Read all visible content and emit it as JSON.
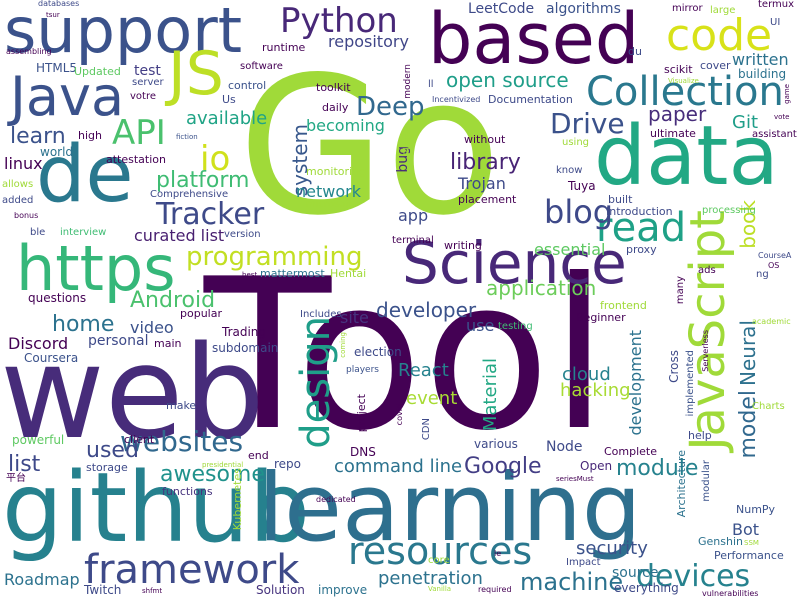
{
  "words": [
    {
      "text": "Tool",
      "color": "#440154"
    },
    {
      "text": "Go",
      "color": "#a0da39"
    },
    {
      "text": "web",
      "color": "#472c7a"
    },
    {
      "text": "github",
      "color": "#26818e"
    },
    {
      "text": "learning",
      "color": "#2e6f8e"
    },
    {
      "text": "based",
      "color": "#440154"
    },
    {
      "text": "support",
      "color": "#3b528b"
    },
    {
      "text": "de",
      "color": "#2a788e"
    },
    {
      "text": "data",
      "color": "#22a884"
    },
    {
      "text": "Science",
      "color": "#482878"
    },
    {
      "text": "JavaScript",
      "color": "#a0da39"
    },
    {
      "text": "https",
      "color": "#35b779"
    },
    {
      "text": "Java",
      "color": "#3b528b"
    },
    {
      "text": "JS",
      "color": "#bddf26"
    },
    {
      "text": "code",
      "color": "#d8e219"
    },
    {
      "text": "Collection",
      "color": "#2a788e"
    },
    {
      "text": "Python",
      "color": "#482878"
    },
    {
      "text": "resources",
      "color": "#2a788e"
    },
    {
      "text": "framework",
      "color": "#3e4a89"
    },
    {
      "text": "design",
      "color": "#1f9e89"
    },
    {
      "text": "read",
      "color": "#1fa187"
    },
    {
      "text": "API",
      "color": "#4ac16d"
    },
    {
      "text": "Deep",
      "color": "#31688e"
    },
    {
      "text": "io",
      "color": "#d0e11c"
    },
    {
      "text": "Tracker",
      "color": "#3e4a89"
    },
    {
      "text": "programming",
      "color": "#c2df23"
    },
    {
      "text": "websites",
      "color": "#31688e"
    },
    {
      "text": "blog",
      "color": "#3e4989"
    },
    {
      "text": "Drive",
      "color": "#3b528b"
    },
    {
      "text": "devices",
      "color": "#26828e"
    },
    {
      "text": "machine",
      "color": "#2c728e"
    },
    {
      "text": "Google",
      "color": "#433e85"
    },
    {
      "text": "module",
      "color": "#26828e"
    },
    {
      "text": "application",
      "color": "#6ccd5a"
    },
    {
      "text": "developer",
      "color": "#3b528b"
    },
    {
      "text": "library",
      "color": "#482475"
    },
    {
      "text": "home",
      "color": "#2c728e"
    },
    {
      "text": "used",
      "color": "#3e4a89"
    },
    {
      "text": "book",
      "color": "#bddf26"
    },
    {
      "text": "model",
      "color": "#31688e"
    },
    {
      "text": "Neural",
      "color": "#2d718e"
    },
    {
      "text": "learn",
      "color": "#3b528b"
    },
    {
      "text": "Android",
      "color": "#4ac16d"
    },
    {
      "text": "platform",
      "color": "#3fbc73"
    },
    {
      "text": "paper",
      "color": "#472d7b"
    },
    {
      "text": "open source",
      "color": "#1f9e89"
    },
    {
      "text": "command line",
      "color": "#2c728e"
    },
    {
      "text": "penetration",
      "color": "#2c728e"
    },
    {
      "text": "system",
      "color": "#38588c"
    },
    {
      "text": "awesome",
      "color": "#20928c"
    },
    {
      "text": "list",
      "color": "#3e4989"
    },
    {
      "text": "security",
      "color": "#3b528b"
    },
    {
      "text": "repository",
      "color": "#404688"
    },
    {
      "text": "Git",
      "color": "#1f9e89"
    },
    {
      "text": "written",
      "color": "#2c728e"
    },
    {
      "text": "available",
      "color": "#20a486"
    },
    {
      "text": "cloud",
      "color": "#26828e"
    },
    {
      "text": "Material",
      "color": "#22a884"
    },
    {
      "text": "hacking",
      "color": "#a8db34"
    },
    {
      "text": "event",
      "color": "#a8db34"
    },
    {
      "text": "becoming",
      "color": "#22a884"
    },
    {
      "text": "network",
      "color": "#24878e"
    },
    {
      "text": "Trojan",
      "color": "#3e4a89"
    },
    {
      "text": "video",
      "color": "#3b528b"
    },
    {
      "text": "Discord",
      "color": "#440154"
    },
    {
      "text": "personal",
      "color": "#3e4a89"
    },
    {
      "text": "React",
      "color": "#26828e"
    },
    {
      "text": "development",
      "color": "#2c728e"
    },
    {
      "text": "source",
      "color": "#2c728e"
    },
    {
      "text": "Roadmap",
      "color": "#2c728e"
    },
    {
      "text": "curated list",
      "color": "#481f70"
    },
    {
      "text": "essential",
      "color": "#5ec962"
    },
    {
      "text": "app",
      "color": "#3e4a89"
    },
    {
      "text": "bug",
      "color": "#472c7a"
    },
    {
      "text": "site",
      "color": "#46337e"
    },
    {
      "text": "linux",
      "color": "#440154"
    },
    {
      "text": "use",
      "color": "#3b528b"
    },
    {
      "text": "LeetCode",
      "color": "#3e4a89"
    },
    {
      "text": "algorithms",
      "color": "#3b528b"
    },
    {
      "text": "test",
      "color": "#433e85"
    },
    {
      "text": "Node",
      "color": "#3e4a89"
    },
    {
      "text": "Bot",
      "color": "#3b528b"
    },
    {
      "text": "Trading",
      "color": "#440154"
    },
    {
      "text": "Includes",
      "color": "#3e4a89"
    },
    {
      "text": "world",
      "color": "#2c728e"
    },
    {
      "text": "HTML5",
      "color": "#3b528b"
    },
    {
      "text": "building",
      "color": "#2c728e"
    },
    {
      "text": "interview",
      "color": "#3fbc73"
    },
    {
      "text": "questions",
      "color": "#440154"
    },
    {
      "text": "Coursera",
      "color": "#3b528b"
    },
    {
      "text": "DNS",
      "color": "#440154"
    },
    {
      "text": "Performance",
      "color": "#3b528b"
    },
    {
      "text": "Twitch",
      "color": "#3e4a89"
    },
    {
      "text": "Solution",
      "color": "#46337e"
    },
    {
      "text": "improve",
      "color": "#2c728e"
    },
    {
      "text": "everything",
      "color": "#3e4a89"
    },
    {
      "text": "Genshin",
      "color": "#2c728e"
    },
    {
      "text": "Kubernetes",
      "color": "#a0da39"
    },
    {
      "text": "powerful",
      "color": "#5ec962"
    },
    {
      "text": "storage",
      "color": "#3e4a89"
    },
    {
      "text": "client",
      "color": "#440154"
    },
    {
      "text": "end",
      "color": "#440154"
    },
    {
      "text": "repo",
      "color": "#3e4a89"
    },
    {
      "text": "functions",
      "color": "#46337e"
    },
    {
      "text": "Complete",
      "color": "#440154"
    },
    {
      "text": "Cross",
      "color": "#3e4a89"
    },
    {
      "text": "Architecture",
      "color": "#2c728e"
    },
    {
      "text": "NumPy",
      "color": "#3b528b"
    },
    {
      "text": "help",
      "color": "#3e4a89"
    },
    {
      "text": "modular",
      "color": "#3b528b"
    },
    {
      "text": "Open",
      "color": "#482878"
    },
    {
      "text": "various",
      "color": "#3e4a89"
    },
    {
      "text": "main",
      "color": "#440154"
    },
    {
      "text": "make",
      "color": "#3e4a89"
    },
    {
      "text": "project",
      "color": "#440154"
    },
    {
      "text": "election",
      "color": "#3e4a89"
    },
    {
      "text": "players",
      "color": "#3b528b"
    },
    {
      "text": "subdomain",
      "color": "#3e4a89"
    },
    {
      "text": "popular",
      "color": "#440154"
    },
    {
      "text": "mattermost",
      "color": "#2c728e"
    },
    {
      "text": "Hentai",
      "color": "#a0da39"
    },
    {
      "text": "frontend",
      "color": "#a0da39"
    },
    {
      "text": "Beginner",
      "color": "#440154"
    },
    {
      "text": "testing",
      "color": "#3fbc73"
    },
    {
      "text": "Comprehensive",
      "color": "#3e4a89"
    },
    {
      "text": "version",
      "color": "#3e4a89"
    },
    {
      "text": "terminal",
      "color": "#440154"
    },
    {
      "text": "writing",
      "color": "#440154"
    },
    {
      "text": "proxy",
      "color": "#3e4a89"
    },
    {
      "text": "Tuya",
      "color": "#440154"
    },
    {
      "text": "Introduction",
      "color": "#3e4a89"
    },
    {
      "text": "processing",
      "color": "#5ec962"
    },
    {
      "text": "built",
      "color": "#3e4a89"
    },
    {
      "text": "placement",
      "color": "#440154"
    },
    {
      "text": "know",
      "color": "#3e4a89"
    },
    {
      "text": "without",
      "color": "#440154"
    },
    {
      "text": "using",
      "color": "#a0da39"
    },
    {
      "text": "ultimate",
      "color": "#440154"
    },
    {
      "text": "assistant",
      "color": "#440154"
    },
    {
      "text": "Documentation",
      "color": "#3e4a89"
    },
    {
      "text": "Incentivized",
      "color": "#3e4a89"
    },
    {
      "text": "scikit",
      "color": "#440154"
    },
    {
      "text": "cover",
      "color": "#3e4a89"
    },
    {
      "text": "toolkit",
      "color": "#440154"
    },
    {
      "text": "monitoring",
      "color": "#a0da39"
    },
    {
      "text": "daily",
      "color": "#440154"
    },
    {
      "text": "microsoft",
      "color": "#a0da39"
    },
    {
      "text": "software",
      "color": "#440154"
    },
    {
      "text": "runtime",
      "color": "#440154"
    },
    {
      "text": "Updated",
      "color": "#5ec962"
    },
    {
      "text": "server",
      "color": "#3e4a89"
    },
    {
      "text": "votre",
      "color": "#440154"
    },
    {
      "text": "control",
      "color": "#3b528b"
    },
    {
      "text": "Us",
      "color": "#3e4a89"
    },
    {
      "text": "high",
      "color": "#440154"
    },
    {
      "text": "attestation",
      "color": "#440154"
    },
    {
      "text": "allows",
      "color": "#a0da39"
    },
    {
      "text": "added",
      "color": "#3e4a89"
    },
    {
      "text": "bonus",
      "color": "#440154"
    },
    {
      "text": "ble",
      "color": "#3e4a89"
    },
    {
      "text": "mirror",
      "color": "#440154"
    },
    {
      "text": "large",
      "color": "#a0da39"
    },
    {
      "text": "termux",
      "color": "#440154"
    },
    {
      "text": "UI",
      "color": "#3e4a89"
    },
    {
      "text": "modern",
      "color": "#440154"
    },
    {
      "text": "du",
      "color": "#3e4a89"
    },
    {
      "text": "databases",
      "color": "#3e4a89"
    },
    {
      "text": "assembling",
      "color": "#440154"
    },
    {
      "text": "Please",
      "color": "#a0da39"
    },
    {
      "text": "fiction",
      "color": "#3b528b"
    },
    {
      "text": "ads",
      "color": "#440154"
    },
    {
      "text": "ng",
      "color": "#3e4a89"
    },
    {
      "text": "many",
      "color": "#440154"
    },
    {
      "text": "CourseA",
      "color": "#3e4a89"
    },
    {
      "text": "OS",
      "color": "#440154"
    },
    {
      "text": "academic",
      "color": "#a0da39"
    },
    {
      "text": "Charts",
      "color": "#a0da39"
    },
    {
      "text": "Serverless",
      "color": "#440154"
    },
    {
      "text": "implemented",
      "color": "#3b528b"
    },
    {
      "text": "core",
      "color": "#a0da39"
    },
    {
      "text": "Impact",
      "color": "#3e4a89"
    },
    {
      "text": "required",
      "color": "#440154"
    },
    {
      "text": "vulnerabilities",
      "color": "#440154"
    },
    {
      "text": "SSM",
      "color": "#a0da39"
    },
    {
      "text": "seriesMust",
      "color": "#440154"
    },
    {
      "text": "covid",
      "color": "#440154"
    },
    {
      "text": "CDN",
      "color": "#3e4a89"
    },
    {
      "text": "dedicated",
      "color": "#440154"
    },
    {
      "text": "presidential",
      "color": "#a0da39"
    },
    {
      "text": "平台",
      "color": "#440154"
    },
    {
      "text": "shfmt",
      "color": "#440154"
    },
    {
      "text": "Vanilla",
      "color": "#a0da39"
    },
    {
      "text": "le",
      "color": "#440154"
    },
    {
      "text": "coming",
      "color": "#a0da39"
    },
    {
      "text": "best",
      "color": "#440154"
    },
    {
      "text": "Visualize",
      "color": "#a0da39"
    },
    {
      "text": "game",
      "color": "#440154"
    },
    {
      "text": "vote",
      "color": "#440154"
    },
    {
      "text": "ll",
      "color": "#3e4a89"
    },
    {
      "text": "tsur",
      "color": "#440154"
    }
  ]
}
